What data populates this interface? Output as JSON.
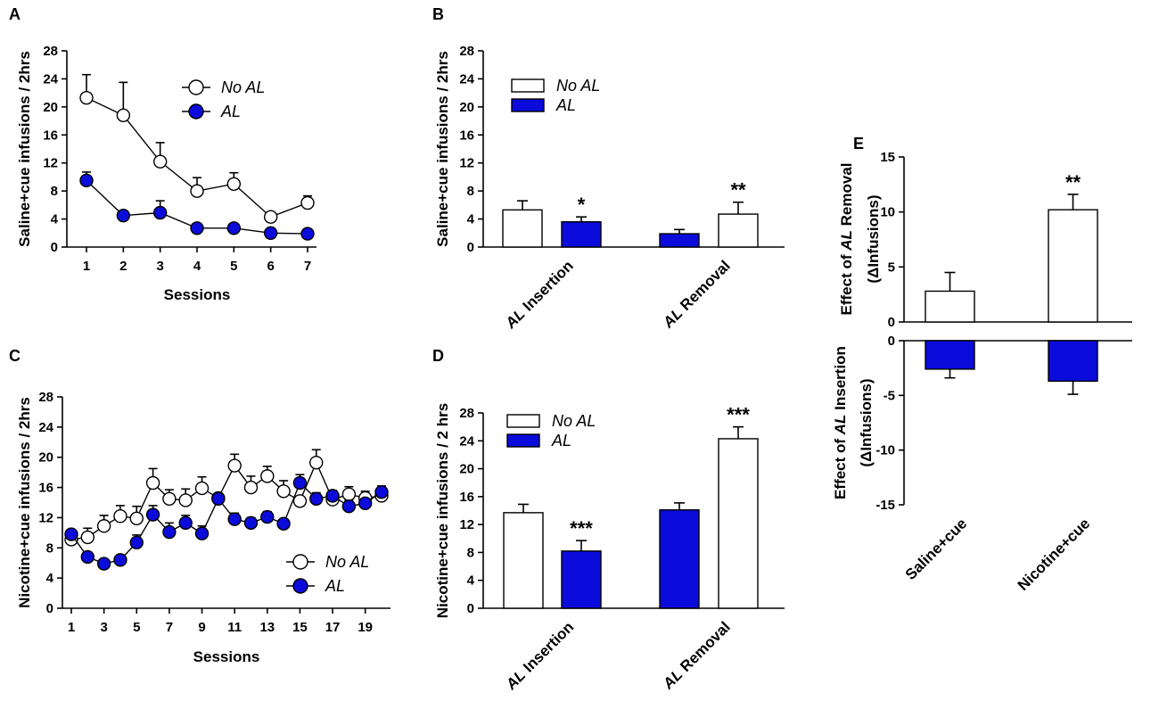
{
  "colors": {
    "no_al": "#ffffff",
    "al": "#0b0bdc",
    "stroke": "#000000"
  },
  "chart_data": [
    {
      "panel": "A",
      "type": "line",
      "xlabel": "Sessions",
      "ylabel": "Saline+cue infusions / 2hrs",
      "ylim": [
        0,
        28
      ],
      "yticks": [
        0,
        4,
        8,
        12,
        16,
        20,
        24,
        28
      ],
      "xticks": [
        1,
        2,
        3,
        4,
        5,
        6,
        7
      ],
      "x": [
        1,
        2,
        3,
        4,
        5,
        6,
        7
      ],
      "legend_position": "top-right",
      "series": [
        {
          "name": "No AL",
          "values": [
            21.3,
            18.8,
            12.2,
            8.0,
            9.0,
            4.3,
            6.3
          ],
          "errors": [
            3.3,
            4.7,
            2.7,
            1.9,
            1.6,
            0.4,
            1.0
          ]
        },
        {
          "name": "AL",
          "values": [
            9.5,
            4.5,
            4.9,
            2.7,
            2.7,
            2.0,
            1.9
          ],
          "errors": [
            1.2,
            0.4,
            1.7,
            0.3,
            0.3,
            0.3,
            0.3
          ]
        }
      ]
    },
    {
      "panel": "B",
      "type": "bar",
      "ylabel": "Saline+cue infusions / 2hrs",
      "ylim": [
        0,
        28
      ],
      "yticks": [
        0,
        4,
        8,
        12,
        16,
        20,
        24,
        28
      ],
      "categories": [
        "AL Insertion",
        "AL Removal"
      ],
      "legend_position": "top-left",
      "series": [
        {
          "name": "No AL",
          "values": [
            5.3,
            4.7
          ],
          "errors": [
            1.3,
            1.7
          ]
        },
        {
          "name": "AL",
          "values": [
            3.6,
            1.9
          ],
          "errors": [
            0.7,
            0.6
          ]
        }
      ],
      "annotations": [
        {
          "category": "AL Insertion",
          "series": "AL",
          "text": "*"
        },
        {
          "category": "AL Removal",
          "series": "No AL",
          "text": "**"
        }
      ]
    },
    {
      "panel": "C",
      "type": "line",
      "xlabel": "Sessions",
      "ylabel": "Nicotine+cue infusions / 2hrs",
      "ylim": [
        0,
        28
      ],
      "yticks": [
        0,
        4,
        8,
        12,
        16,
        20,
        24,
        28
      ],
      "xticks": [
        1,
        3,
        5,
        7,
        9,
        11,
        13,
        15,
        17,
        19
      ],
      "x": [
        1,
        2,
        3,
        4,
        5,
        6,
        7,
        8,
        9,
        10,
        11,
        12,
        13,
        14,
        15,
        16,
        17,
        18,
        19,
        20
      ],
      "legend_position": "bottom-right",
      "series": [
        {
          "name": "No AL",
          "values": [
            9.1,
            9.4,
            10.9,
            12.2,
            11.9,
            16.6,
            14.5,
            14.3,
            15.9,
            14.6,
            18.9,
            16.0,
            17.5,
            15.5,
            14.2,
            19.3,
            14.4,
            15.1,
            14.6,
            14.9
          ],
          "errors": [
            0.5,
            1.2,
            1.4,
            1.4,
            1.6,
            1.9,
            1.2,
            1.5,
            1.5,
            0.6,
            1.5,
            1.5,
            1.3,
            1.4,
            0.4,
            1.7,
            0.7,
            1.0,
            0.9,
            0.9
          ]
        },
        {
          "name": "AL",
          "values": [
            9.8,
            6.8,
            5.9,
            6.4,
            8.7,
            12.4,
            10.1,
            11.3,
            9.9,
            14.5,
            11.8,
            11.3,
            12.1,
            11.2,
            16.6,
            14.5,
            14.9,
            13.5,
            13.9,
            15.4
          ],
          "errors": [
            0.6,
            0.5,
            0.5,
            0.6,
            1.0,
            1.2,
            1.2,
            1.0,
            1.0,
            0.6,
            0.8,
            0.7,
            0.7,
            0.5,
            1.1,
            0.8,
            0.7,
            0.8,
            0.6,
            0.8
          ]
        }
      ]
    },
    {
      "panel": "D",
      "type": "bar",
      "ylabel": "Nicotine+cue infusions / 2 hrs",
      "ylim": [
        0,
        28
      ],
      "yticks": [
        0,
        4,
        8,
        12,
        16,
        20,
        24,
        28
      ],
      "categories": [
        "AL Insertion",
        "AL Removal"
      ],
      "legend_position": "top-left",
      "series": [
        {
          "name": "No AL",
          "values": [
            13.7,
            24.3
          ],
          "errors": [
            1.2,
            1.7
          ]
        },
        {
          "name": "AL",
          "values": [
            8.2,
            14.1
          ],
          "errors": [
            1.5,
            1.0
          ]
        }
      ],
      "annotations": [
        {
          "category": "AL Insertion",
          "series": "AL",
          "text": "***"
        },
        {
          "category": "AL Removal",
          "series": "No AL",
          "text": "***"
        }
      ]
    },
    {
      "panel": "E",
      "type": "bar",
      "categories": [
        "Saline+cue",
        "Nicotine+cue"
      ],
      "subplots": [
        {
          "ylabel": "Effect of AL Removal (ΔInfusions)",
          "ylim": [
            0,
            15
          ],
          "yticks": [
            0,
            5,
            10,
            15
          ],
          "color": "No AL",
          "values": [
            2.8,
            10.2
          ],
          "errors": [
            1.7,
            1.4
          ],
          "annotations": [
            {
              "category": "Nicotine+cue",
              "text": "**"
            }
          ]
        },
        {
          "ylabel": "Effect of AL Insertion (ΔInfusions)",
          "ylim": [
            -15,
            0
          ],
          "yticks": [
            0,
            -5,
            -10,
            -15
          ],
          "color": "AL",
          "values": [
            -2.6,
            -3.7
          ],
          "errors": [
            0.8,
            1.2
          ]
        }
      ]
    }
  ]
}
